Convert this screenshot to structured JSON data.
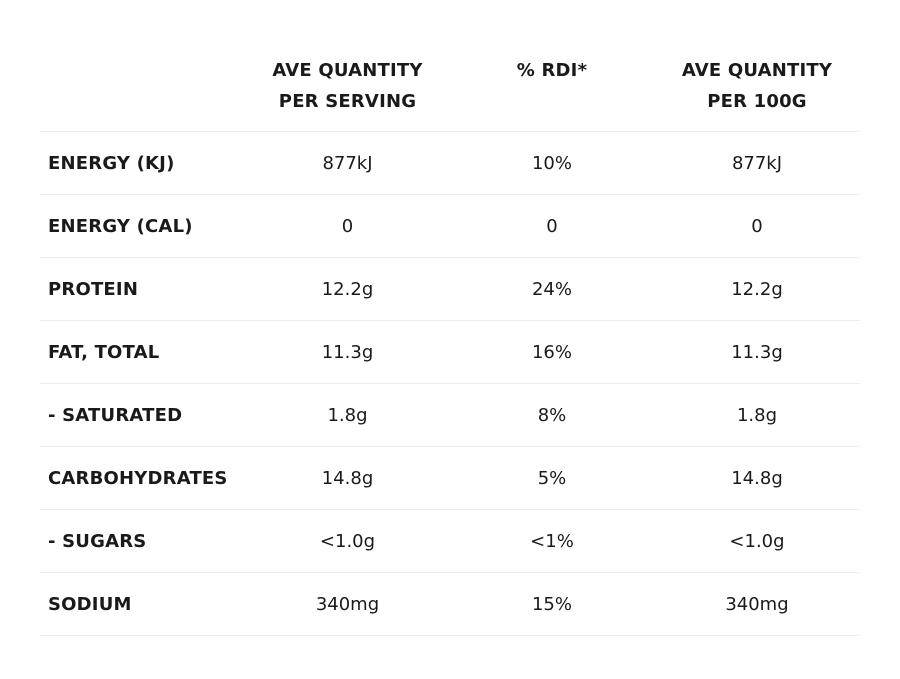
{
  "table": {
    "headers": [
      "",
      "AVE QUANTITY\nPER SERVING",
      "% RDI*",
      "AVE QUANTITY\nPER 100G"
    ],
    "rows": [
      {
        "label": "ENERGY (KJ)",
        "per_serving": "877kJ",
        "rdi": "10%",
        "per_100g": "877kJ"
      },
      {
        "label": "ENERGY (CAL)",
        "per_serving": "0",
        "rdi": "0",
        "per_100g": "0"
      },
      {
        "label": "PROTEIN",
        "per_serving": "12.2g",
        "rdi": "24%",
        "per_100g": "12.2g"
      },
      {
        "label": "FAT, TOTAL",
        "per_serving": "11.3g",
        "rdi": "16%",
        "per_100g": "11.3g"
      },
      {
        "label": "- SATURATED",
        "per_serving": "1.8g",
        "rdi": "8%",
        "per_100g": "1.8g"
      },
      {
        "label": "CARBOHYDRATES",
        "per_serving": "14.8g",
        "rdi": "5%",
        "per_100g": "14.8g"
      },
      {
        "label": "- SUGARS",
        "per_serving": "<1.0g",
        "rdi": "<1%",
        "per_100g": "<1.0g"
      },
      {
        "label": "SODIUM",
        "per_serving": "340mg",
        "rdi": "15%",
        "per_100g": "340mg"
      }
    ]
  },
  "colors": {
    "text": "#1a1a1a",
    "divider": "#ececec",
    "background": "#ffffff"
  }
}
